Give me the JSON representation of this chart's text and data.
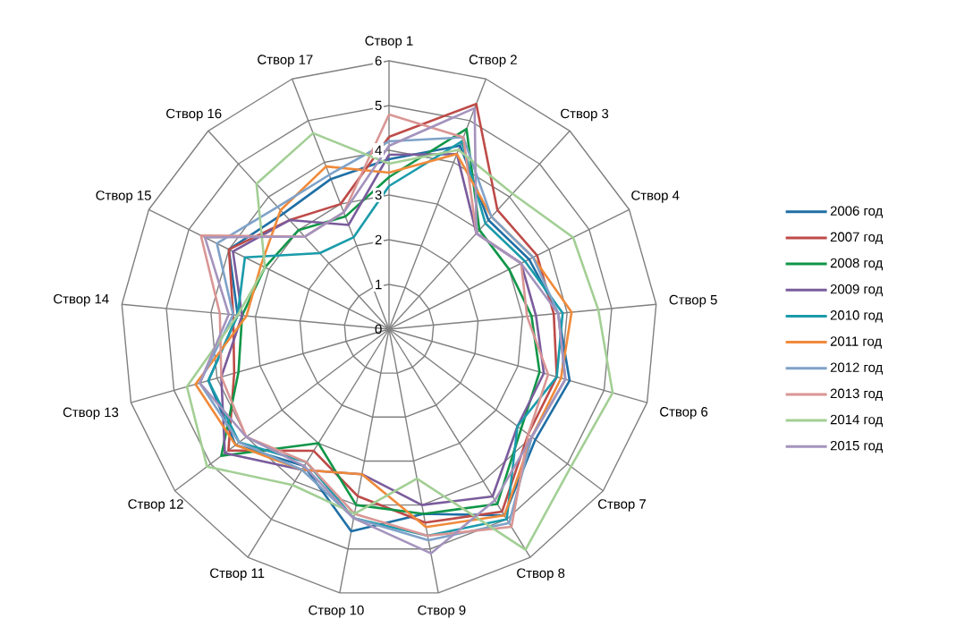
{
  "chart_data": {
    "type": "radar",
    "categories": [
      "Створ 1",
      "Створ 2",
      "Створ 3",
      "Створ 4",
      "Створ 5",
      "Створ 6",
      "Створ 7",
      "Створ 8",
      "Створ 9",
      "Створ 10",
      "Створ 11",
      "Створ 12",
      "Створ 13",
      "Створ 14",
      "Створ 15",
      "Створ 16",
      "Створ 17"
    ],
    "ylim": [
      0,
      6
    ],
    "yticks": [
      0,
      1,
      2,
      3,
      4,
      5,
      6
    ],
    "grid": true,
    "legend": "right",
    "marker": "none",
    "line_style": "solid",
    "series": [
      {
        "name": "2006 год",
        "color": "#1f6fa5",
        "values": [
          3.8,
          4.4,
          3.3,
          3.5,
          3.8,
          4.2,
          4.1,
          4.9,
          4.2,
          4.6,
          3.6,
          4.3,
          4.2,
          3.4,
          4.0,
          3.5,
          3.6
        ]
      },
      {
        "name": "2007 год",
        "color": "#be4b48",
        "values": [
          4.3,
          5.4,
          3.6,
          3.7,
          3.7,
          3.9,
          3.9,
          4.8,
          4.4,
          3.8,
          3.2,
          4.5,
          3.6,
          3.5,
          4.0,
          3.3,
          3.0
        ]
      },
      {
        "name": "2008 год",
        "color": "#109648",
        "values": [
          3.4,
          4.8,
          3.0,
          3.0,
          3.2,
          3.5,
          3.7,
          4.6,
          4.2,
          4.0,
          3.0,
          4.7,
          3.5,
          3.3,
          3.1,
          3.0,
          2.7
        ]
      },
      {
        "name": "2009 год",
        "color": "#7a5c9c",
        "values": [
          3.9,
          4.2,
          2.9,
          3.3,
          3.3,
          3.6,
          3.6,
          4.4,
          4.0,
          3.3,
          3.7,
          4.6,
          3.9,
          3.3,
          3.9,
          3.3,
          2.5
        ]
      },
      {
        "name": "2010 год",
        "color": "#1a9baa",
        "values": [
          3.2,
          4.5,
          3.2,
          3.4,
          3.9,
          3.9,
          3.6,
          5.0,
          4.7,
          4.3,
          3.5,
          4.2,
          4.2,
          3.4,
          3.6,
          2.3,
          2.2
        ]
      },
      {
        "name": "2011 год",
        "color": "#f08a3a",
        "values": [
          3.5,
          4.2,
          3.4,
          3.6,
          4.1,
          4.0,
          4.0,
          4.9,
          4.5,
          3.3,
          3.7,
          4.3,
          4.5,
          3.2,
          3.2,
          3.6,
          3.9
        ]
      },
      {
        "name": "2012 год",
        "color": "#7fa2c8",
        "values": [
          4.2,
          4.6,
          3.4,
          3.6,
          3.8,
          4.1,
          4.0,
          5.1,
          4.8,
          4.3,
          3.7,
          4.2,
          4.4,
          3.5,
          4.3,
          3.7,
          3.7
        ]
      },
      {
        "name": "2013 год",
        "color": "#d99694",
        "values": [
          4.8,
          4.6,
          2.9,
          3.3,
          3.1,
          3.7,
          3.9,
          5.2,
          4.7,
          4.2,
          3.5,
          4.0,
          3.9,
          3.8,
          4.7,
          2.8,
          2.8
        ]
      },
      {
        "name": "2014 год",
        "color": "#a3cf95",
        "values": [
          3.7,
          4.3,
          4.1,
          4.6,
          4.7,
          5.2,
          5.1,
          5.8,
          3.4,
          4.2,
          4.1,
          5.1,
          4.7,
          3.4,
          3.1,
          4.4,
          4.7
        ]
      },
      {
        "name": "2015 год",
        "color": "#a493bd",
        "values": [
          4.1,
          5.3,
          2.9,
          3.3,
          3.8,
          4.1,
          4.0,
          4.5,
          5.1,
          4.3,
          3.6,
          4.0,
          4.4,
          3.6,
          4.6,
          2.8,
          2.8
        ]
      }
    ]
  }
}
